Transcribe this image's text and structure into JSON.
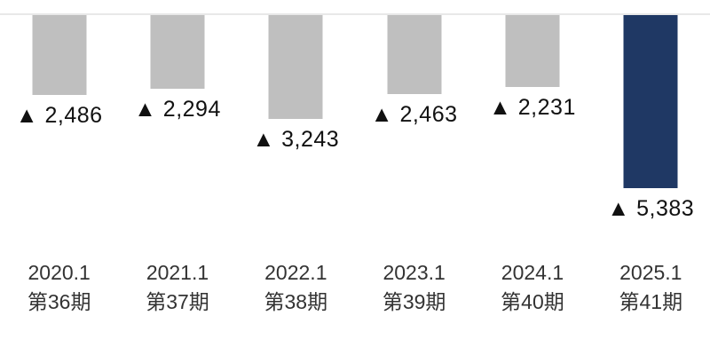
{
  "chart_data": {
    "type": "bar",
    "title": "",
    "orientation": "negative-bars-hanging-from-zero-baseline",
    "negative_marker": "▲",
    "categories": [
      "2020.1 第36期",
      "2021.1 第37期",
      "2022.1 第38期",
      "2023.1 第39期",
      "2024.1 第40期",
      "2025.1 第41期"
    ],
    "values": [
      -2486,
      -2294,
      -3243,
      -2463,
      -2231,
      -5383
    ],
    "points": [
      {
        "year": "2020.1",
        "period": "第36期",
        "value": -2486,
        "label": "▲ 2,486",
        "color": "#bfbfbf"
      },
      {
        "year": "2021.1",
        "period": "第37期",
        "value": -2294,
        "label": "▲ 2,294",
        "color": "#bfbfbf"
      },
      {
        "year": "2022.1",
        "period": "第38期",
        "value": -3243,
        "label": "▲ 3,243",
        "color": "#bfbfbf"
      },
      {
        "year": "2023.1",
        "period": "第39期",
        "value": -2463,
        "label": "▲ 2,463",
        "color": "#bfbfbf"
      },
      {
        "year": "2024.1",
        "period": "第40期",
        "value": -2231,
        "label": "▲ 2,231",
        "color": "#bfbfbf"
      },
      {
        "year": "2025.1",
        "period": "第41期",
        "value": -5383,
        "label": "▲ 5,383",
        "color": "#1f3864"
      }
    ],
    "bar_color_default": "#bfbfbf",
    "bar_color_highlight": "#1f3864",
    "baseline_color": "#e8e8e8",
    "ylim": [
      -6000,
      0
    ],
    "xlabel": "",
    "ylabel": "",
    "grid": false,
    "legend": false
  }
}
